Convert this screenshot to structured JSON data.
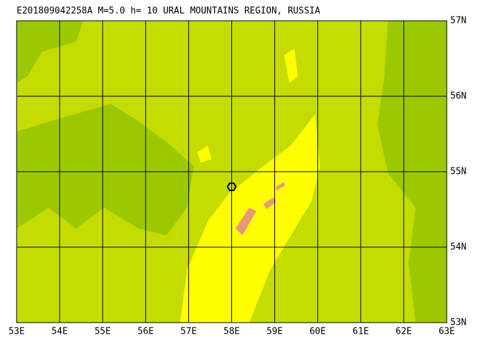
{
  "map": {
    "title": "E201809042258A  M=5.0  h= 10 URAL MOUNTAINS REGION, RUSSIA",
    "lonlim": [
      53,
      63
    ],
    "latlim": [
      53,
      57
    ],
    "lon_ticks": [
      {
        "value": 53,
        "label": "53E"
      },
      {
        "value": 54,
        "label": "54E"
      },
      {
        "value": 55,
        "label": "55E"
      },
      {
        "value": 56,
        "label": "56E"
      },
      {
        "value": 57,
        "label": "57E"
      },
      {
        "value": 58,
        "label": "58E"
      },
      {
        "value": 59,
        "label": "59E"
      },
      {
        "value": 60,
        "label": "60E"
      },
      {
        "value": 61,
        "label": "61E"
      },
      {
        "value": 62,
        "label": "62E"
      },
      {
        "value": 63,
        "label": "63E"
      }
    ],
    "lat_ticks": [
      {
        "value": 53,
        "label": "53N"
      },
      {
        "value": 54,
        "label": "54N"
      },
      {
        "value": 55,
        "label": "55N"
      },
      {
        "value": 56,
        "label": "56N"
      },
      {
        "value": 57,
        "label": "57N"
      }
    ],
    "epicenter": {
      "lon": 58,
      "lat": 54.8
    }
  }
}
